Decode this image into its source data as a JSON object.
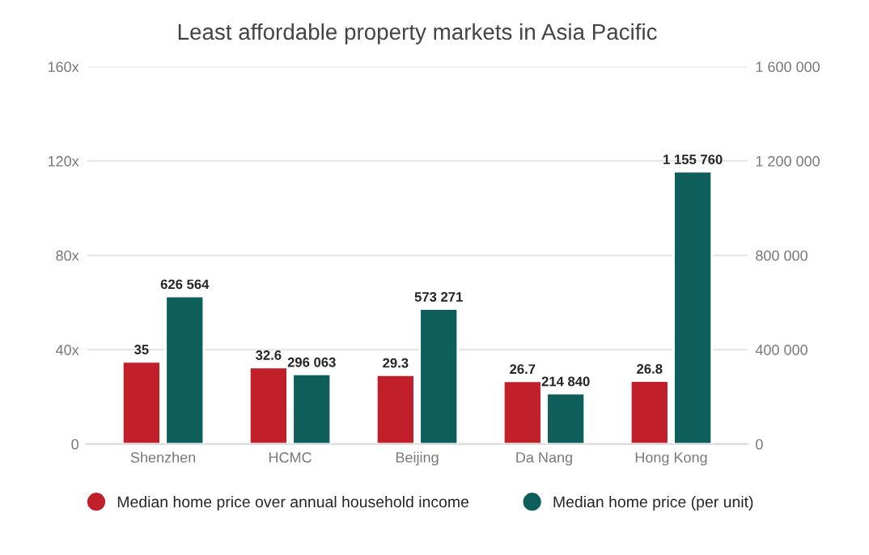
{
  "chart_data": {
    "type": "bar",
    "title": "Least affordable property markets in Asia Pacific",
    "categories": [
      "Shenzhen",
      "HCMC",
      "Beijing",
      "Da Nang",
      "Hong Kong"
    ],
    "series": [
      {
        "name": "Median home price over annual household income",
        "color": "#c1202b",
        "values": [
          35,
          32.6,
          29.3,
          26.7,
          26.8
        ],
        "value_labels": [
          "35",
          "32.6",
          "29.3",
          "26.7",
          "26.8"
        ]
      },
      {
        "name": "Median home price (per unit)",
        "color": "#0e5f5b",
        "axis": "y2",
        "values": [
          626564,
          296063,
          573271,
          214840,
          1155760
        ],
        "value_labels": [
          "626 564",
          "296 063",
          "573 271",
          "214 840",
          "1 155 760"
        ]
      }
    ],
    "ylim": [
      0,
      160
    ],
    "yticks": [
      0,
      {
        "value": 40,
        "label": "40x"
      },
      {
        "value": 80,
        "label": "80x"
      },
      {
        "value": 120,
        "label": "120x"
      },
      {
        "value": 160,
        "label": "160x"
      }
    ],
    "y2lim": [
      0,
      1600000
    ],
    "y2ticks": [
      0,
      {
        "value": 400000,
        "label": "400 000"
      },
      {
        "value": 800000,
        "label": "800 000"
      },
      {
        "value": 1200000,
        "label": "1 200 000"
      },
      {
        "value": 1600000,
        "label": "1 600 000"
      }
    ],
    "grid": "y",
    "legend": "bottom"
  }
}
